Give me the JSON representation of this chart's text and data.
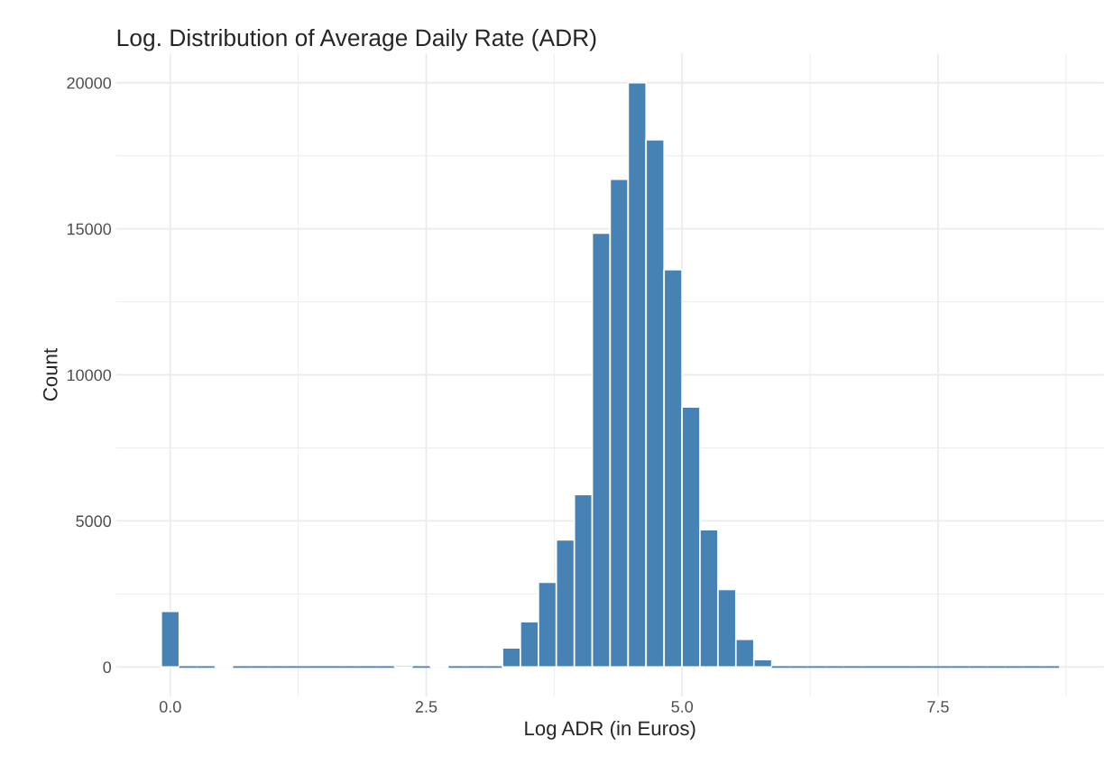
{
  "chart_data": {
    "type": "histogram",
    "title": "Log. Distribution of Average Daily Rate (ADR)",
    "xlabel": "Log ADR (in Euros)",
    "ylabel": "Count",
    "bins": [
      -0.088,
      0.088,
      0.263,
      0.439,
      0.614,
      0.789,
      0.965,
      1.14,
      1.316,
      1.491,
      1.666,
      1.842,
      2.017,
      2.193,
      2.368,
      2.543,
      2.719,
      2.894,
      3.07,
      3.245,
      3.42,
      3.596,
      3.771,
      3.947,
      4.122,
      4.297,
      4.473,
      4.648,
      4.824,
      4.999,
      5.174,
      5.35,
      5.525,
      5.701,
      5.876,
      6.051,
      6.227,
      6.402,
      6.578,
      6.753,
      6.928,
      7.104,
      7.279,
      7.455,
      7.63,
      7.805,
      7.981,
      8.156,
      8.332,
      8.507,
      8.682
    ],
    "values": [
      1900,
      0,
      0,
      10,
      0,
      0,
      0,
      0,
      0,
      0,
      0,
      0,
      0,
      60,
      0,
      30,
      0,
      0,
      0,
      650,
      1550,
      2900,
      4350,
      5900,
      14850,
      16700,
      20000,
      18050,
      13600,
      8900,
      4700,
      2650,
      950,
      250,
      0,
      0,
      0,
      0,
      0,
      0,
      0,
      0,
      0,
      0,
      0,
      0,
      0,
      0,
      0,
      0
    ],
    "color": "#4682b4",
    "xlim": [
      -0.53,
      9.12
    ],
    "xticks": [
      {
        "value": 0,
        "label": "0.0"
      },
      2.5,
      {
        "value": 5,
        "label": "5.0"
      },
      7.5
    ],
    "ylim": [
      -1000,
      21000
    ],
    "yticks": [
      0,
      5000,
      10000,
      15000,
      20000
    ],
    "grid": true
  }
}
